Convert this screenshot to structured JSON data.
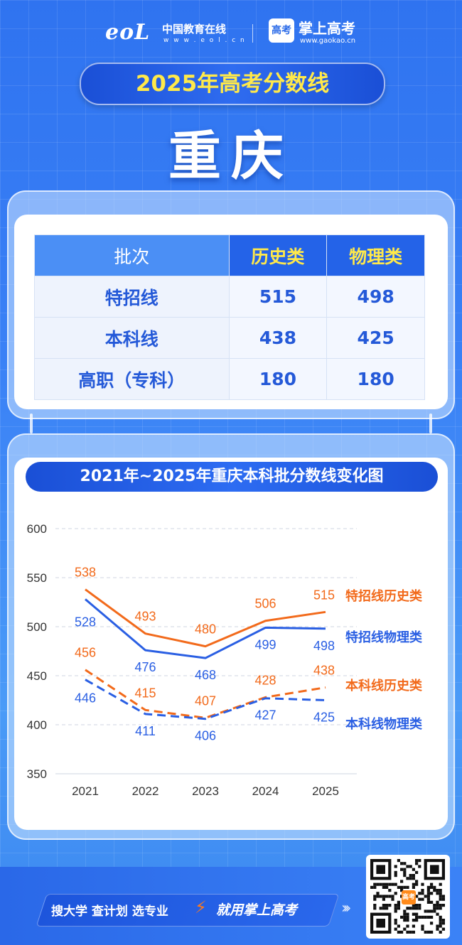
{
  "header": {
    "eol_logo": "eoL",
    "brand1_name": "中国教育在线",
    "brand1_url": "w w w . e o l . c n",
    "gaokao_icon": "高考",
    "brand2_name": "掌上高考",
    "brand2_url": "www.gaokao.cn"
  },
  "title": "2025年高考分数线",
  "city": "重庆",
  "table": {
    "headers": [
      "批次",
      "历史类",
      "物理类"
    ],
    "rows": [
      {
        "batch": "特招线",
        "history": "515",
        "physics": "498"
      },
      {
        "batch": "本科线",
        "history": "438",
        "physics": "425"
      },
      {
        "batch": "高职（专科）",
        "history": "180",
        "physics": "180"
      }
    ]
  },
  "chart_data": {
    "type": "line",
    "title": "2021年~2025年重庆本科批分数线变化图",
    "categories": [
      "2021",
      "2022",
      "2023",
      "2024",
      "2025"
    ],
    "ylim": [
      350,
      600
    ],
    "yticks": [
      600,
      550,
      500,
      450,
      400,
      350
    ],
    "grid": true,
    "legend_placement": "right",
    "series": [
      {
        "name": "特招线历史类",
        "values": [
          538,
          493,
          480,
          506,
          515
        ],
        "color": "#f26a1b",
        "dashed": false
      },
      {
        "name": "特招线物理类",
        "values": [
          528,
          476,
          468,
          499,
          498
        ],
        "color": "#2a5fe3",
        "dashed": false
      },
      {
        "name": "本科线历史类",
        "values": [
          456,
          415,
          407,
          428,
          438
        ],
        "color": "#f26a1b",
        "dashed": true
      },
      {
        "name": "本科线物理类",
        "values": [
          446,
          411,
          406,
          427,
          425
        ],
        "color": "#2a5fe3",
        "dashed": true
      }
    ]
  },
  "footer": {
    "slogan1": "搜大学  查计划  选专业",
    "slogan2": "就用掌上高考",
    "qr_badge": "高考"
  },
  "colors": {
    "accent_yellow": "#ffe94a",
    "orange": "#f26a1b",
    "blue": "#2a5fe3"
  }
}
